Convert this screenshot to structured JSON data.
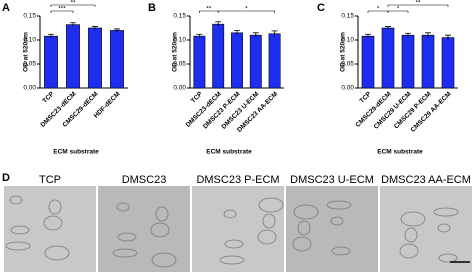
{
  "panels": [
    "A",
    "B",
    "C",
    "D"
  ],
  "chart_data": [
    {
      "type": "bar",
      "y_label": "OD at 520nm",
      "x_label": "ECM substrate",
      "color": "#1e2ef0",
      "categories": [
        "TCP",
        "DMSC23-dECM",
        "CMSC29-dECM",
        "HDF-dECM"
      ],
      "values": [
        0.108,
        0.132,
        0.125,
        0.12
      ],
      "errors": [
        0.004,
        0.004,
        0.003,
        0.003
      ],
      "ylim": [
        0,
        0.15
      ],
      "yticks": [
        {
          "value": 0,
          "label": "0.00"
        },
        {
          "value": 0.05,
          "label": "0.05"
        },
        {
          "value": 0.1,
          "label": "0.10"
        },
        {
          "value": 0.15,
          "label": "0.15"
        }
      ],
      "brackets": [
        {
          "from": 0,
          "to": 1,
          "label": "***"
        },
        {
          "from": 0,
          "to": 2,
          "label": "**"
        }
      ]
    },
    {
      "type": "bar",
      "y_label": "OD at 520nm",
      "x_label": "ECM substrate",
      "color": "#1e2ef0",
      "categories": [
        "TCP",
        "DMSC23-dECM",
        "DMSC23 P-ECM",
        "DMSC23 U-ECM",
        "DMSC23 AA-ECM"
      ],
      "values": [
        0.108,
        0.133,
        0.115,
        0.11,
        0.113
      ],
      "errors": [
        0.004,
        0.005,
        0.005,
        0.005,
        0.006
      ],
      "ylim": [
        0,
        0.15
      ],
      "yticks": [
        {
          "value": 0,
          "label": "0.00"
        },
        {
          "value": 0.05,
          "label": "0.05"
        },
        {
          "value": 0.1,
          "label": "0.10"
        },
        {
          "value": 0.15,
          "label": "0.15"
        }
      ],
      "brackets": [
        {
          "from": 0,
          "to": 1,
          "label": "**"
        },
        {
          "from": 1,
          "to": 4,
          "label": "*"
        }
      ]
    },
    {
      "type": "bar",
      "y_label": "OD at 520nm",
      "x_label": "ECM substrate",
      "color": "#1e2ef0",
      "categories": [
        "TCP",
        "CMSC29-dECM",
        "CMSC29 U-ECM",
        "CMSC29 P-ECM",
        "CMSC29 AA-ECM"
      ],
      "values": [
        0.108,
        0.125,
        0.11,
        0.11,
        0.105
      ],
      "errors": [
        0.004,
        0.003,
        0.004,
        0.005,
        0.005
      ],
      "ylim": [
        0,
        0.15
      ],
      "yticks": [
        {
          "value": 0,
          "label": "0.00"
        },
        {
          "value": 0.05,
          "label": "0.05"
        },
        {
          "value": 0.1,
          "label": "0.10"
        },
        {
          "value": 0.15,
          "label": "0.15"
        }
      ],
      "brackets": [
        {
          "from": 0,
          "to": 1,
          "label": "*"
        },
        {
          "from": 1,
          "to": 2,
          "label": "*"
        },
        {
          "from": 1,
          "to": 4,
          "label": "**"
        }
      ]
    }
  ],
  "images": [
    "TCP",
    "DMSC23",
    "DMSC23 P-ECM",
    "DMSC23 U-ECM",
    "DMSC23 AA-ECM"
  ]
}
